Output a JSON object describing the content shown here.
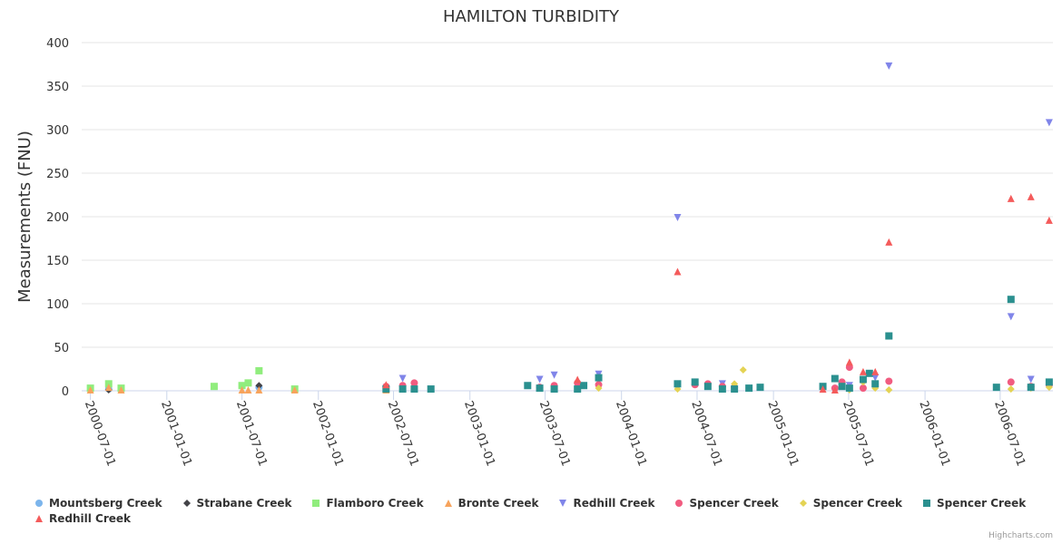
{
  "chart_data": {
    "type": "scatter",
    "title": "HAMILTON TURBIDITY",
    "xlabel": "",
    "ylabel": "Measurements (FNU)",
    "ylim": [
      0,
      400
    ],
    "yticks": [
      "0",
      "50",
      "100",
      "150",
      "200",
      "250",
      "300",
      "350",
      "400"
    ],
    "xlim": [
      "2000-06-10",
      "2006-11-05"
    ],
    "xticks": [
      "2000-07-01",
      "2001-01-01",
      "2001-07-01",
      "2002-01-01",
      "2002-07-01",
      "2003-01-01",
      "2003-07-01",
      "2004-01-01",
      "2004-07-01",
      "2005-01-01",
      "2005-07-01",
      "2006-01-01",
      "2006-07-01"
    ],
    "grid": true,
    "legend_position": "bottom",
    "credit": "Highcharts.com",
    "series": [
      {
        "name": "Mountsberg Creek",
        "marker": "circle",
        "color": "#7cb5ec",
        "points": [
          [
            "2000-08-14",
            2
          ],
          [
            "2000-09-13",
            1
          ],
          [
            "2001-08-11",
            4
          ]
        ]
      },
      {
        "name": "Strabane Creek",
        "marker": "diamond",
        "color": "#434348",
        "points": [
          [
            "2000-08-14",
            1
          ],
          [
            "2001-08-11",
            6
          ]
        ]
      },
      {
        "name": "Flamboro Creek",
        "marker": "square",
        "color": "#90ed7d",
        "points": [
          [
            "2000-07-01",
            3
          ],
          [
            "2000-08-14",
            8
          ],
          [
            "2000-09-13",
            3
          ],
          [
            "2001-04-25",
            5
          ],
          [
            "2001-07-01",
            6
          ],
          [
            "2001-07-16",
            9
          ],
          [
            "2001-08-11",
            23
          ],
          [
            "2001-11-05",
            2
          ]
        ]
      },
      {
        "name": "Bronte Creek",
        "marker": "triangle",
        "color": "#f7a35c",
        "points": [
          [
            "2000-07-01",
            1
          ],
          [
            "2000-08-14",
            4
          ],
          [
            "2000-09-13",
            1
          ],
          [
            "2001-07-01",
            1
          ],
          [
            "2001-07-16",
            1
          ],
          [
            "2001-08-11",
            1
          ],
          [
            "2001-11-05",
            1
          ],
          [
            "2002-06-13",
            1
          ]
        ]
      },
      {
        "name": "Redhill Creek",
        "marker": "triangle-down",
        "color": "#8085e9",
        "points": [
          [
            "2002-07-23",
            14
          ],
          [
            "2003-06-18",
            13
          ],
          [
            "2003-07-23",
            18
          ],
          [
            "2003-11-07",
            19
          ],
          [
            "2004-05-15",
            199
          ],
          [
            "2004-08-31",
            8
          ],
          [
            "2005-07-03",
            6
          ],
          [
            "2005-09-03",
            15
          ],
          [
            "2005-10-06",
            373
          ],
          [
            "2006-07-27",
            85
          ],
          [
            "2006-09-13",
            13
          ],
          [
            "2006-10-27",
            308
          ]
        ]
      },
      {
        "name": "Spencer Creek",
        "marker": "circle",
        "color": "#f15c80",
        "points": [
          [
            "2002-06-13",
            5
          ],
          [
            "2002-07-23",
            6
          ],
          [
            "2002-08-20",
            9
          ],
          [
            "2003-06-18",
            4
          ],
          [
            "2003-07-23",
            6
          ],
          [
            "2003-09-17",
            9
          ],
          [
            "2003-11-07",
            7
          ],
          [
            "2004-06-26",
            7
          ],
          [
            "2004-07-27",
            8
          ],
          [
            "2004-08-31",
            5
          ],
          [
            "2004-09-29",
            4
          ],
          [
            "2005-05-29",
            3
          ],
          [
            "2005-06-15",
            10
          ],
          [
            "2005-07-03",
            27
          ],
          [
            "2005-08-05",
            3
          ],
          [
            "2005-10-06",
            11
          ],
          [
            "2006-07-27",
            10
          ],
          [
            "2006-09-13",
            5
          ],
          [
            "2006-10-27",
            7
          ]
        ]
      },
      {
        "name": "Spencer Creek",
        "marker": "diamond",
        "color": "#e4d354",
        "points": [
          [
            "2003-11-07",
            3
          ],
          [
            "2004-05-15",
            2
          ],
          [
            "2004-09-29",
            8
          ],
          [
            "2004-10-20",
            24
          ],
          [
            "2005-07-03",
            1
          ],
          [
            "2005-08-05",
            10
          ],
          [
            "2005-09-03",
            3
          ],
          [
            "2005-10-06",
            1
          ],
          [
            "2006-07-27",
            2
          ],
          [
            "2006-09-13",
            3
          ],
          [
            "2006-10-27",
            4
          ]
        ]
      },
      {
        "name": "Spencer Creek",
        "marker": "square",
        "color": "#2b908f",
        "points": [
          [
            "2002-06-13",
            2
          ],
          [
            "2002-07-23",
            2
          ],
          [
            "2002-08-20",
            2
          ],
          [
            "2002-09-29",
            2
          ],
          [
            "2003-05-20",
            6
          ],
          [
            "2003-06-18",
            3
          ],
          [
            "2003-07-23",
            2
          ],
          [
            "2003-09-17",
            2
          ],
          [
            "2003-10-02",
            6
          ],
          [
            "2003-11-07",
            15
          ],
          [
            "2004-05-15",
            8
          ],
          [
            "2004-06-26",
            10
          ],
          [
            "2004-07-27",
            5
          ],
          [
            "2004-08-31",
            2
          ],
          [
            "2004-09-29",
            2
          ],
          [
            "2004-11-03",
            3
          ],
          [
            "2004-11-30",
            4
          ],
          [
            "2005-04-30",
            5
          ],
          [
            "2005-05-29",
            14
          ],
          [
            "2005-06-15",
            5
          ],
          [
            "2005-07-03",
            3
          ],
          [
            "2005-08-05",
            13
          ],
          [
            "2005-08-20",
            20
          ],
          [
            "2005-09-03",
            8
          ],
          [
            "2005-10-06",
            63
          ],
          [
            "2006-06-22",
            4
          ],
          [
            "2006-07-27",
            105
          ],
          [
            "2006-09-13",
            4
          ],
          [
            "2006-10-27",
            10
          ]
        ]
      },
      {
        "name": "Redhill Creek",
        "marker": "triangle",
        "color": "#f45b5b",
        "points": [
          [
            "2002-06-13",
            7
          ],
          [
            "2003-09-17",
            13
          ],
          [
            "2004-05-15",
            137
          ],
          [
            "2005-04-30",
            2
          ],
          [
            "2005-05-29",
            1
          ],
          [
            "2005-07-03",
            33
          ],
          [
            "2005-08-05",
            22
          ],
          [
            "2005-09-03",
            22
          ],
          [
            "2005-10-06",
            171
          ],
          [
            "2006-07-27",
            221
          ],
          [
            "2006-09-13",
            223
          ],
          [
            "2006-10-27",
            196
          ]
        ]
      }
    ]
  }
}
